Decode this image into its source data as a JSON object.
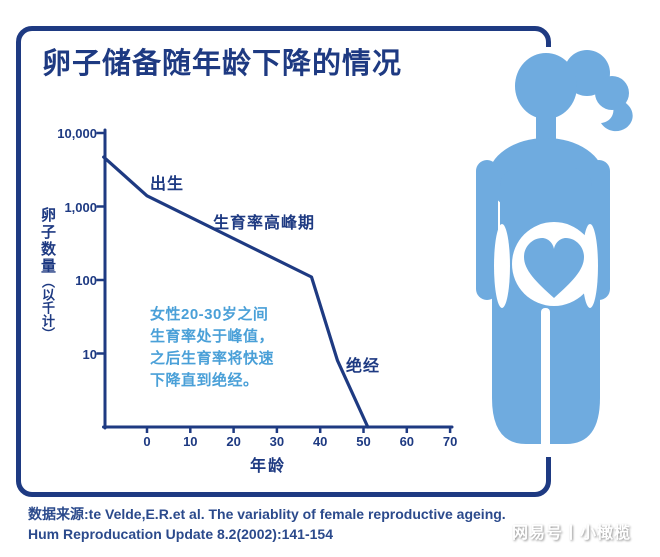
{
  "page": {
    "source_line1": "数据来源:te Velde,E.R.et al. The variablity of female reproductive ageing.",
    "source_line2": "Hum Reproducation Update 8.2(2002):141-154",
    "watermark": "网易号丨小橄榄"
  },
  "chart_data": {
    "type": "line",
    "title": "卵子储备随年龄下降的情况",
    "xlabel": "年龄",
    "ylabel": "卵子数量（以千计）",
    "ylabel_main": "卵子数量",
    "ylabel_sub": "（以千计）",
    "y_scale": "log",
    "grid": false,
    "legend": "none",
    "x_ticks": [
      "0",
      "10",
      "20",
      "30",
      "40",
      "50",
      "60",
      "70"
    ],
    "y_ticks": [
      "10,000",
      "1,000",
      "100",
      "10"
    ],
    "xlim": [
      -10,
      72
    ],
    "ylim_thousands": [
      1,
      10000
    ],
    "series": [
      {
        "name": "卵子数量(千)",
        "points": [
          {
            "age": -10,
            "value": 4700
          },
          {
            "age": 0,
            "value": 1400
          },
          {
            "age": 38,
            "value": 110
          },
          {
            "age": 44,
            "value": 8
          },
          {
            "age": 51,
            "value": 1
          }
        ]
      }
    ],
    "annotations": {
      "birth": "出生",
      "peak": "生育率高峰期",
      "menopause": "绝经",
      "note_lines": [
        "女性20-30岁之间",
        "生育率处于峰值，",
        "之后生育率将快速",
        "下降直到绝经。"
      ]
    }
  },
  "colors": {
    "navy": "#1e3a82",
    "figure_blue": "#6fabdf",
    "note_blue": "#4aa0d8",
    "background": "#ffffff"
  }
}
